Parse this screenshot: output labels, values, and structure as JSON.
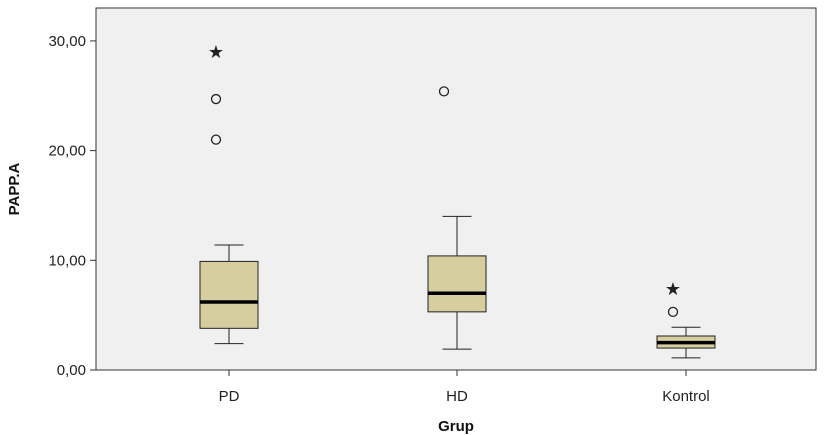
{
  "chart_data": {
    "type": "boxplot",
    "xlabel": "Grup",
    "ylabel": "PAPP.A",
    "ylim": [
      0,
      33
    ],
    "yticks": [
      0,
      10,
      20,
      30
    ],
    "ytick_labels": [
      "0,00",
      "10,00",
      "20,00",
      "30,00"
    ],
    "grid": false,
    "box_color": "#d6ce9f",
    "categories": [
      "PD",
      "HD",
      "Kontrol"
    ],
    "boxes": [
      {
        "name": "PD",
        "whisker_low": 2.4,
        "q1": 3.8,
        "median": 6.2,
        "q3": 9.9,
        "whisker_high": 11.4,
        "outliers_circle": [
          21.0,
          24.7
        ],
        "outliers_star": [
          29.0
        ]
      },
      {
        "name": "HD",
        "whisker_low": 1.9,
        "q1": 5.3,
        "median": 7.0,
        "q3": 10.4,
        "whisker_high": 14.0,
        "outliers_circle": [
          25.4
        ],
        "outliers_star": []
      },
      {
        "name": "Kontrol",
        "whisker_low": 1.1,
        "q1": 2.0,
        "median": 2.5,
        "q3": 3.1,
        "whisker_high": 3.9,
        "outliers_circle": [
          5.3
        ],
        "outliers_star": [
          7.4
        ]
      }
    ]
  }
}
